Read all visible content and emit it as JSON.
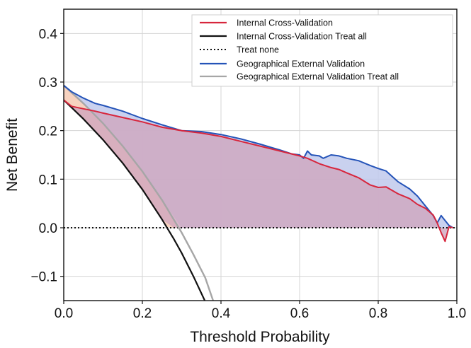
{
  "chart_data": {
    "type": "line",
    "title": "",
    "xlabel": "Threshold Probability",
    "ylabel": "Net Benefit",
    "xlim": [
      0,
      1
    ],
    "ylim": [
      -0.15,
      0.45
    ],
    "xticks": [
      0,
      0.2,
      0.4,
      0.6,
      0.8,
      1.0
    ],
    "xtick_labels": [
      "0.0",
      "0.2",
      "0.4",
      "0.6",
      "0.8",
      "1.0"
    ],
    "yticks": [
      -0.1,
      0,
      0.1,
      0.2,
      0.3,
      0.4
    ],
    "ytick_labels": [
      "−0.1",
      "0.0",
      "0.1",
      "0.2",
      "0.3",
      "0.4"
    ],
    "grid": true,
    "legend_position": "top-right",
    "legend": [
      "Internal Cross-Validation",
      "Internal Cross-Validation Treat all",
      "Treat none",
      "Geographical External Validation",
      "Geographical External Validation Treat all"
    ],
    "colors": {
      "internal": "#d7263d",
      "internal_treat_all": "#111111",
      "treat_none": "#111111",
      "external": "#2453b8",
      "external_treat_all": "#a6a6a6",
      "fill_internal": "#cfa6be",
      "fill_external": "#bfc9ec",
      "fill_treat_all_gap": "#f6cdb8",
      "grid": "#d4d4d4"
    },
    "series": [
      {
        "name": "Internal Cross-Validation",
        "x": [
          0,
          0.02,
          0.05,
          0.08,
          0.1,
          0.15,
          0.2,
          0.25,
          0.3,
          0.35,
          0.4,
          0.45,
          0.5,
          0.55,
          0.6,
          0.62,
          0.65,
          0.68,
          0.7,
          0.72,
          0.75,
          0.78,
          0.8,
          0.82,
          0.85,
          0.88,
          0.9,
          0.92,
          0.94,
          0.95,
          0.96,
          0.97,
          0.98,
          0.99
        ],
        "y": [
          0.263,
          0.25,
          0.245,
          0.24,
          0.236,
          0.227,
          0.218,
          0.207,
          0.2,
          0.195,
          0.188,
          0.178,
          0.168,
          0.158,
          0.148,
          0.143,
          0.132,
          0.124,
          0.12,
          0.113,
          0.103,
          0.088,
          0.083,
          0.084,
          0.07,
          0.06,
          0.048,
          0.04,
          0.026,
          0.01,
          -0.01,
          -0.028,
          0.002,
          0
        ]
      },
      {
        "name": "Internal Cross-Validation Treat all",
        "x": [
          0,
          0.05,
          0.1,
          0.15,
          0.2,
          0.25,
          0.28,
          0.3,
          0.33,
          0.36
        ],
        "y": [
          0.263,
          0.224,
          0.181,
          0.133,
          0.079,
          0.017,
          -0.023,
          -0.052,
          -0.1,
          -0.152
        ]
      },
      {
        "name": "Treat none",
        "x": [
          0,
          1
        ],
        "y": [
          0,
          0
        ]
      },
      {
        "name": "Geographical External Validation",
        "x": [
          0,
          0.02,
          0.05,
          0.08,
          0.1,
          0.15,
          0.2,
          0.25,
          0.3,
          0.35,
          0.4,
          0.45,
          0.5,
          0.55,
          0.58,
          0.6,
          0.61,
          0.62,
          0.63,
          0.65,
          0.66,
          0.68,
          0.7,
          0.72,
          0.75,
          0.78,
          0.8,
          0.82,
          0.85,
          0.88,
          0.9,
          0.92,
          0.94,
          0.95,
          0.96,
          0.97,
          0.98,
          0.99
        ],
        "y": [
          0.293,
          0.28,
          0.267,
          0.256,
          0.252,
          0.24,
          0.225,
          0.212,
          0.2,
          0.198,
          0.192,
          0.183,
          0.172,
          0.16,
          0.152,
          0.15,
          0.143,
          0.158,
          0.15,
          0.148,
          0.143,
          0.15,
          0.148,
          0.143,
          0.138,
          0.128,
          0.122,
          0.117,
          0.095,
          0.08,
          0.065,
          0.045,
          0.025,
          0.01,
          0.025,
          0.015,
          0.005,
          0
        ]
      },
      {
        "name": "Geographical External Validation Treat all",
        "x": [
          0,
          0.05,
          0.1,
          0.15,
          0.2,
          0.25,
          0.3,
          0.33,
          0.36,
          0.38
        ],
        "y": [
          0.293,
          0.256,
          0.215,
          0.168,
          0.116,
          0.057,
          -0.01,
          -0.055,
          -0.103,
          -0.15
        ]
      }
    ]
  }
}
